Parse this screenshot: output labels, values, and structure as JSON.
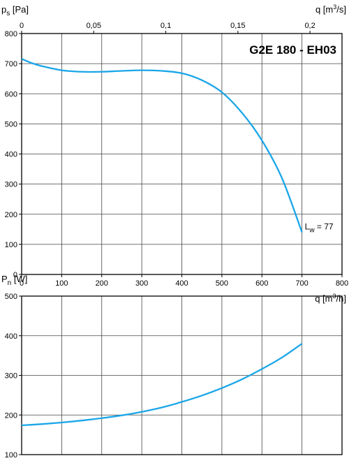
{
  "chart_data": [
    {
      "type": "line",
      "title": "G2E 180 - EH03",
      "ylabel_main": "p",
      "ylabel_sub": "s",
      "ylabel_unit": " [Pa]",
      "xlabel_bottom_main": "q [m",
      "xlabel_bottom_sup": "3",
      "xlabel_bottom_tail": "/h]",
      "xlabel_top_main": "q [m",
      "xlabel_top_sup": "3",
      "xlabel_top_tail": "/s]",
      "xlim": [
        0,
        800
      ],
      "ylim": [
        0,
        800
      ],
      "x_ticks": [
        "0",
        "100",
        "200",
        "300",
        "400",
        "500",
        "600",
        "700",
        "800"
      ],
      "y_ticks": [
        "0",
        "100",
        "200",
        "300",
        "400",
        "500",
        "600",
        "700",
        "800"
      ],
      "x_top_ticks": [
        {
          "value": 0,
          "label": "0"
        },
        {
          "value": 0.05,
          "label": "0,05"
        },
        {
          "value": 0.1,
          "label": "0,1"
        },
        {
          "value": 0.15,
          "label": "0,15"
        },
        {
          "value": 0.2,
          "label": "0,2"
        }
      ],
      "grid": true,
      "annotation": {
        "main": "L",
        "sub": "w",
        "tail": " = 77",
        "x": 700,
        "y": 145
      },
      "series": [
        {
          "x": [
            0,
            25,
            50,
            100,
            150,
            200,
            250,
            300,
            350,
            400,
            450,
            500,
            550,
            600,
            650,
            700
          ],
          "y": [
            716,
            702,
            692,
            678,
            673,
            673,
            676,
            678,
            676,
            668,
            645,
            605,
            537,
            445,
            320,
            140
          ]
        }
      ]
    },
    {
      "type": "line",
      "ylabel_main": "P",
      "ylabel_sub": "n",
      "ylabel_unit": " [W]",
      "xlim": [
        0,
        800
      ],
      "ylim": [
        100,
        500
      ],
      "y_ticks": [
        "100",
        "200",
        "300",
        "400",
        "500"
      ],
      "grid": true,
      "series": [
        {
          "x": [
            0,
            50,
            100,
            150,
            200,
            250,
            300,
            350,
            400,
            450,
            500,
            550,
            600,
            650,
            700
          ],
          "y": [
            174,
            177,
            181,
            186,
            192,
            199,
            208,
            219,
            233,
            249,
            268,
            290,
            316,
            345,
            380
          ]
        }
      ]
    }
  ],
  "colors": {
    "curve": "#1aa6e8",
    "grid": "#444444",
    "axis": "#000000"
  }
}
